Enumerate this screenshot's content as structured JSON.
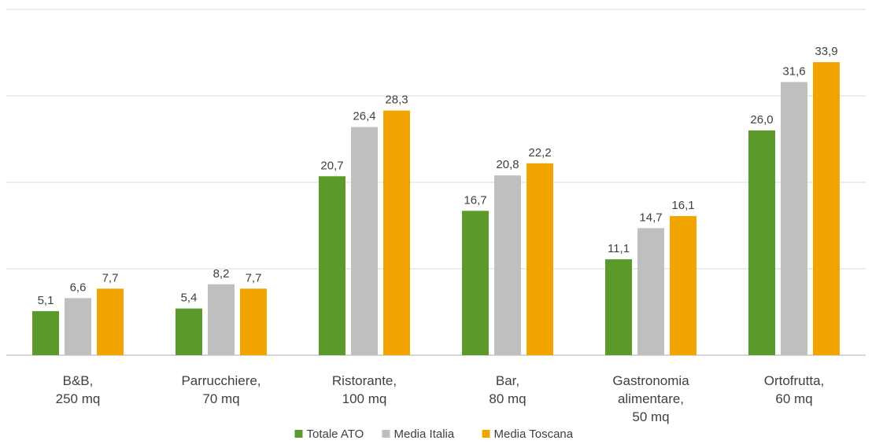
{
  "chart_data": {
    "type": "bar",
    "categories": [
      [
        "B&B,",
        "250 mq"
      ],
      [
        "Parrucchiere,",
        "70 mq"
      ],
      [
        "Ristorante,",
        "100 mq"
      ],
      [
        "Bar,",
        "80 mq"
      ],
      [
        "Gastronomia",
        "alimentare,",
        "50 mq"
      ],
      [
        "Ortofrutta,",
        "60 mq"
      ]
    ],
    "series": [
      {
        "name": "Totale ATO",
        "color": "#5b9a2a",
        "values": [
          5.1,
          5.4,
          20.7,
          16.7,
          11.1,
          26.0
        ],
        "labels": [
          "5,1",
          "5,4",
          "20,7",
          "16,7",
          "11,1",
          "26,0"
        ]
      },
      {
        "name": "Media Italia",
        "color": "#bfbfbf",
        "values": [
          6.6,
          8.2,
          26.4,
          20.8,
          14.7,
          31.6
        ],
        "labels": [
          "6,6",
          "8,2",
          "26,4",
          "20,8",
          "14,7",
          "31,6"
        ]
      },
      {
        "name": "Media Toscana",
        "color": "#f2a400",
        "values": [
          7.7,
          7.7,
          28.3,
          22.2,
          16.1,
          33.9
        ],
        "labels": [
          "7,7",
          "7,7",
          "28,3",
          "22,2",
          "16,1",
          "33,9"
        ]
      }
    ],
    "ylim": [
      0,
      40
    ],
    "gridlines": [
      10,
      20,
      30,
      40
    ],
    "grid": true,
    "legend_position": "bottom"
  }
}
